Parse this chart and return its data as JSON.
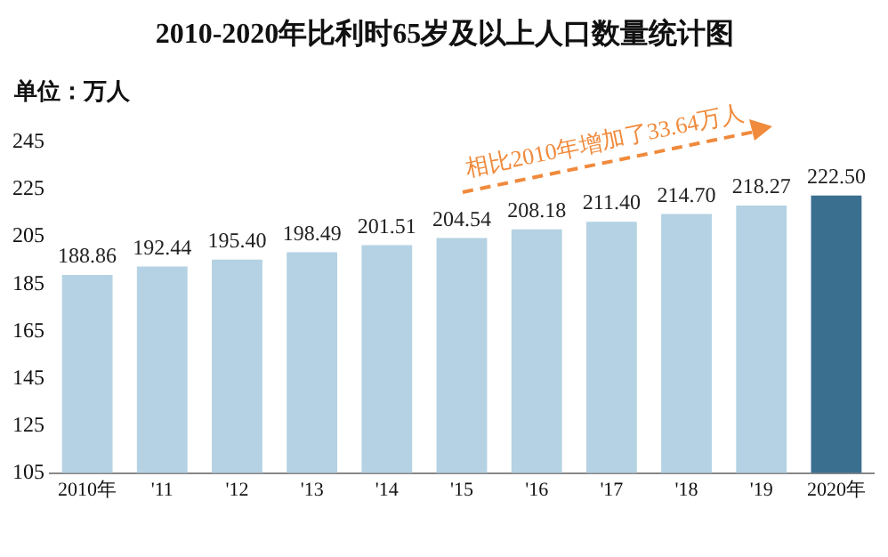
{
  "chart_data": {
    "type": "bar",
    "title": "2010-2020年比利时65岁及以上人口数量统计图",
    "ylabel": "单位：万人",
    "categories": [
      "2010年",
      "'11",
      "'12",
      "'13",
      "'14",
      "'15",
      "'16",
      "'17",
      "'18",
      "'19",
      "2020年"
    ],
    "values": [
      188.86,
      192.44,
      195.4,
      198.49,
      201.51,
      204.54,
      208.18,
      211.4,
      214.7,
      218.27,
      222.5
    ],
    "value_labels": [
      "188.86",
      "192.44",
      "195.40",
      "198.49",
      "201.51",
      "204.54",
      "208.18",
      "211.40",
      "214.70",
      "218.27",
      "222.50"
    ],
    "colors": [
      "#b4d2e3",
      "#b4d2e3",
      "#b4d2e3",
      "#b4d2e3",
      "#b4d2e3",
      "#b4d2e3",
      "#b4d2e3",
      "#b4d2e3",
      "#b4d2e3",
      "#b4d2e3",
      "#3b6f8f"
    ],
    "ylim": [
      105,
      245
    ],
    "yticks": [
      105,
      125,
      145,
      165,
      185,
      205,
      225,
      245
    ],
    "annotations": [
      "相比2010年增加了33.64万人"
    ],
    "grid": false,
    "legend": false
  }
}
